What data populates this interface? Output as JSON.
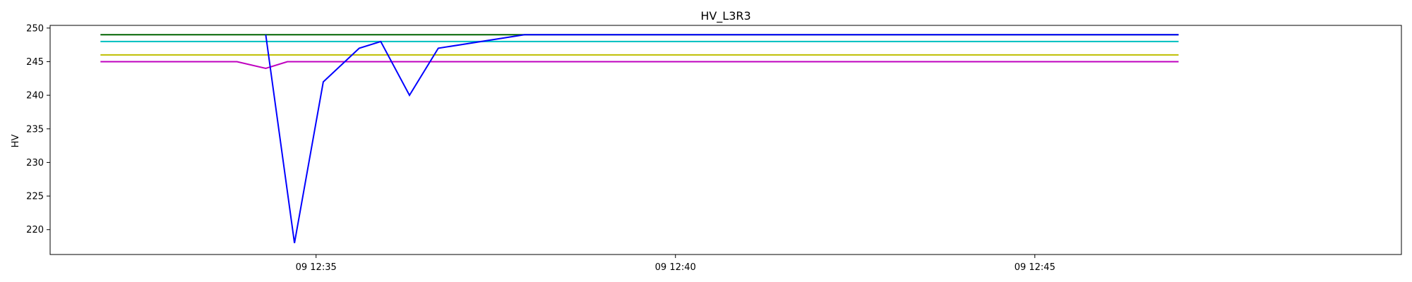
{
  "chart_data": {
    "type": "line",
    "title": "HV_L3R3",
    "xlabel": "",
    "ylabel": "HV",
    "x_unit": "minute",
    "xlim": [
      31.3,
      50.1
    ],
    "ylim": [
      216.3,
      250.4
    ],
    "x_ticks": [
      {
        "value": 35,
        "label": "09 12:35"
      },
      {
        "value": 40,
        "label": "09 12:40"
      },
      {
        "value": 45,
        "label": "09 12:45"
      }
    ],
    "y_ticks": [
      {
        "value": 220,
        "label": "220"
      },
      {
        "value": 225,
        "label": "225"
      },
      {
        "value": 230,
        "label": "230"
      },
      {
        "value": 235,
        "label": "235"
      },
      {
        "value": 240,
        "label": "240"
      },
      {
        "value": 245,
        "label": "245"
      },
      {
        "value": 250,
        "label": "250"
      }
    ],
    "grid": false,
    "series": [
      {
        "color": "#006400",
        "x": [
          32.0,
          47.0
        ],
        "y": [
          249,
          249
        ]
      },
      {
        "color": "#00bfbf",
        "x": [
          32.0,
          47.0
        ],
        "y": [
          248,
          248
        ]
      },
      {
        "color": "#bfbf00",
        "x": [
          32.0,
          47.0
        ],
        "y": [
          246,
          246
        ]
      },
      {
        "color": "#bf00bf",
        "x": [
          32.0,
          33.9,
          34.3,
          34.6,
          47.0
        ],
        "y": [
          245,
          245,
          244,
          245,
          245
        ]
      },
      {
        "color": "#0000ff",
        "x": [
          34.3,
          34.7,
          35.1,
          35.6,
          35.9,
          36.3,
          36.7,
          37.9,
          47.0
        ],
        "y": [
          249,
          218,
          242,
          247,
          248,
          240,
          247,
          249,
          249
        ]
      }
    ]
  }
}
